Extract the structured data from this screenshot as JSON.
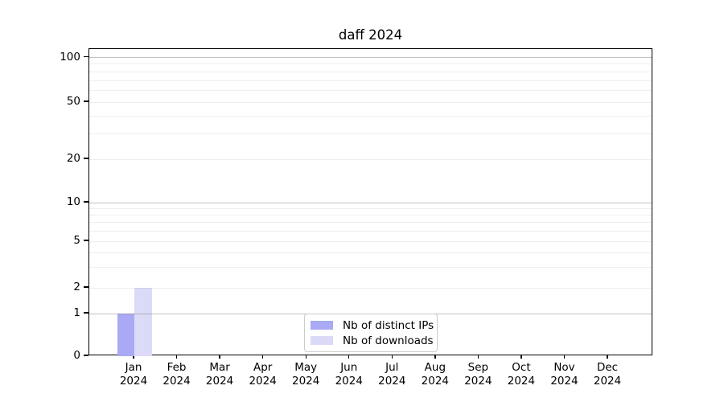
{
  "chart_data": {
    "type": "bar",
    "title": "daff 2024",
    "categories": [
      {
        "month": "Jan",
        "year": "2024"
      },
      {
        "month": "Feb",
        "year": "2024"
      },
      {
        "month": "Mar",
        "year": "2024"
      },
      {
        "month": "Apr",
        "year": "2024"
      },
      {
        "month": "May",
        "year": "2024"
      },
      {
        "month": "Jun",
        "year": "2024"
      },
      {
        "month": "Jul",
        "year": "2024"
      },
      {
        "month": "Aug",
        "year": "2024"
      },
      {
        "month": "Sep",
        "year": "2024"
      },
      {
        "month": "Oct",
        "year": "2024"
      },
      {
        "month": "Nov",
        "year": "2024"
      },
      {
        "month": "Dec",
        "year": "2024"
      }
    ],
    "series": [
      {
        "name": "Nb of distinct IPs",
        "color": "#a9a9f4",
        "values": [
          1,
          0,
          0,
          0,
          0,
          0,
          0,
          0,
          0,
          0,
          0,
          0
        ]
      },
      {
        "name": "Nb of downloads",
        "color": "#dbdbf7",
        "values": [
          2,
          0,
          0,
          0,
          0,
          0,
          0,
          0,
          0,
          0,
          0,
          0
        ]
      }
    ],
    "y_axis": {
      "scale": "symlog",
      "ticks": [
        0,
        1,
        2,
        5,
        10,
        20,
        50,
        100
      ],
      "major_grid_values": [
        1,
        10,
        100
      ],
      "minor_grid_values": [
        3,
        4,
        6,
        7,
        8,
        9,
        30,
        40,
        60,
        70,
        80,
        90
      ],
      "ylim_top": 140
    },
    "grid": true,
    "legend": {
      "location": "lower center inside",
      "entries": [
        "Nb of distinct IPs",
        "Nb of downloads"
      ]
    }
  }
}
